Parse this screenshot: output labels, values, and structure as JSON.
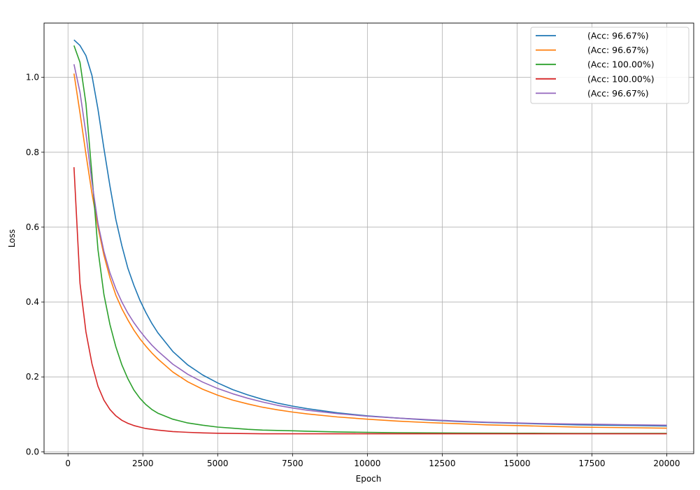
{
  "chart_data": {
    "type": "line",
    "title": "",
    "xlabel": "Epoch",
    "ylabel": "Loss",
    "xlim": [
      -800,
      20900
    ],
    "ylim": [
      -0.005,
      1.145
    ],
    "xticks": [
      0,
      2500,
      5000,
      7500,
      10000,
      12500,
      15000,
      17500,
      20000
    ],
    "yticks": [
      0.0,
      0.2,
      0.4,
      0.6,
      0.8,
      1.0
    ],
    "grid": true,
    "legend_position": "top-right",
    "x": [
      200,
      400,
      600,
      800,
      1000,
      1200,
      1400,
      1600,
      1800,
      2000,
      2200,
      2400,
      2600,
      2800,
      3000,
      3500,
      4000,
      4500,
      5000,
      5500,
      6000,
      6500,
      7000,
      7500,
      8000,
      9000,
      10000,
      11000,
      12000,
      13000,
      14000,
      15000,
      16000,
      17000,
      18000,
      19000,
      20000
    ],
    "series": [
      {
        "name": "",
        "legend_text": "(Acc: 96.67%)",
        "color": "#1f77b4",
        "values": [
          1.1,
          1.085,
          1.058,
          1.005,
          0.915,
          0.81,
          0.71,
          0.62,
          0.55,
          0.49,
          0.445,
          0.405,
          0.372,
          0.343,
          0.318,
          0.268,
          0.232,
          0.205,
          0.184,
          0.166,
          0.152,
          0.14,
          0.13,
          0.122,
          0.115,
          0.104,
          0.096,
          0.09,
          0.085,
          0.081,
          0.078,
          0.076,
          0.074,
          0.072,
          0.071,
          0.07,
          0.069
        ]
      },
      {
        "name": "",
        "legend_text": "(Acc: 96.67%)",
        "color": "#ff7f0e",
        "values": [
          1.01,
          0.905,
          0.795,
          0.69,
          0.6,
          0.525,
          0.465,
          0.418,
          0.382,
          0.352,
          0.325,
          0.302,
          0.282,
          0.264,
          0.248,
          0.213,
          0.187,
          0.167,
          0.151,
          0.138,
          0.128,
          0.119,
          0.112,
          0.106,
          0.101,
          0.093,
          0.087,
          0.082,
          0.078,
          0.075,
          0.072,
          0.07,
          0.068,
          0.066,
          0.065,
          0.064,
          0.063
        ]
      },
      {
        "name": "",
        "legend_text": "(Acc: 100.00%)",
        "color": "#2ca02c",
        "values": [
          1.085,
          1.04,
          0.93,
          0.74,
          0.54,
          0.42,
          0.34,
          0.28,
          0.232,
          0.195,
          0.165,
          0.143,
          0.126,
          0.113,
          0.103,
          0.087,
          0.077,
          0.071,
          0.066,
          0.063,
          0.06,
          0.058,
          0.057,
          0.056,
          0.055,
          0.053,
          0.052,
          0.051,
          0.0505,
          0.05,
          0.0497,
          0.0495,
          0.0493,
          0.0491,
          0.049,
          0.049,
          0.049
        ]
      },
      {
        "name": "",
        "legend_text": "(Acc: 100.00%)",
        "color": "#d62728",
        "values": [
          0.76,
          0.45,
          0.32,
          0.235,
          0.175,
          0.138,
          0.113,
          0.096,
          0.084,
          0.076,
          0.07,
          0.066,
          0.062,
          0.06,
          0.058,
          0.054,
          0.052,
          0.0505,
          0.0495,
          0.049,
          0.0485,
          0.048,
          0.048,
          0.048,
          0.048,
          0.048,
          0.048,
          0.048,
          0.048,
          0.048,
          0.048,
          0.048,
          0.048,
          0.048,
          0.048,
          0.048,
          0.048
        ]
      },
      {
        "name": "",
        "legend_text": "(Acc: 96.67%)",
        "color": "#9467bd",
        "values": [
          1.035,
          0.96,
          0.85,
          0.72,
          0.61,
          0.535,
          0.478,
          0.435,
          0.4,
          0.37,
          0.345,
          0.323,
          0.303,
          0.285,
          0.269,
          0.234,
          0.207,
          0.186,
          0.169,
          0.155,
          0.143,
          0.133,
          0.124,
          0.117,
          0.111,
          0.102,
          0.095,
          0.09,
          0.086,
          0.082,
          0.079,
          0.077,
          0.075,
          0.074,
          0.073,
          0.072,
          0.071
        ]
      }
    ]
  }
}
